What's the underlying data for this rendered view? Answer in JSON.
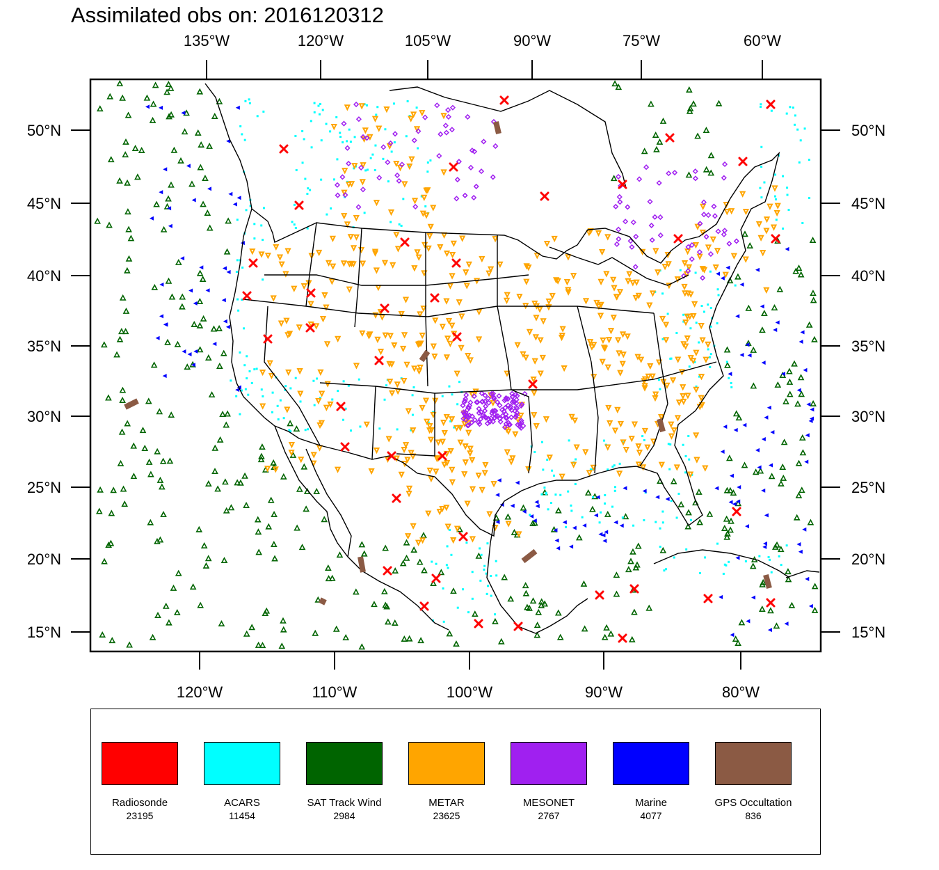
{
  "title": "Assimilated obs on: 2016120312",
  "axes": {
    "top_lon_labels": [
      "135°W",
      "120°W",
      "105°W",
      "90°W",
      "75°W",
      "60°W"
    ],
    "bottom_lon_labels": [
      "120°W",
      "110°W",
      "100°W",
      "90°W",
      "80°W"
    ],
    "left_lat_labels": [
      "50°N",
      "45°N",
      "40°N",
      "35°N",
      "30°N",
      "25°N",
      "20°N",
      "15°N"
    ],
    "right_lat_labels": [
      "50°N",
      "45°N",
      "40°N",
      "35°N",
      "30°N",
      "25°N",
      "20°N",
      "15°N"
    ]
  },
  "legend": {
    "items": [
      {
        "name": "Radiosonde",
        "count": "23195",
        "color": "#ff0000",
        "icon": "red-x-marker"
      },
      {
        "name": "ACARS",
        "count": "11454",
        "color": "#00ffff",
        "icon": "cyan-dot-marker"
      },
      {
        "name": "SAT Track Wind",
        "count": "2984",
        "color": "#006400",
        "icon": "green-triangle-marker"
      },
      {
        "name": "METAR",
        "count": "23625",
        "color": "#ffa500",
        "icon": "orange-inverted-triangle-marker"
      },
      {
        "name": "MESONET",
        "count": "2767",
        "color": "#a020f0",
        "icon": "purple-diamond-marker"
      },
      {
        "name": "Marine",
        "count": "4077",
        "color": "#0000ff",
        "icon": "blue-left-triangle-marker"
      },
      {
        "name": "GPS Occultation",
        "count": "836",
        "color": "#8b5a44",
        "icon": "brown-segment-marker"
      }
    ]
  }
}
